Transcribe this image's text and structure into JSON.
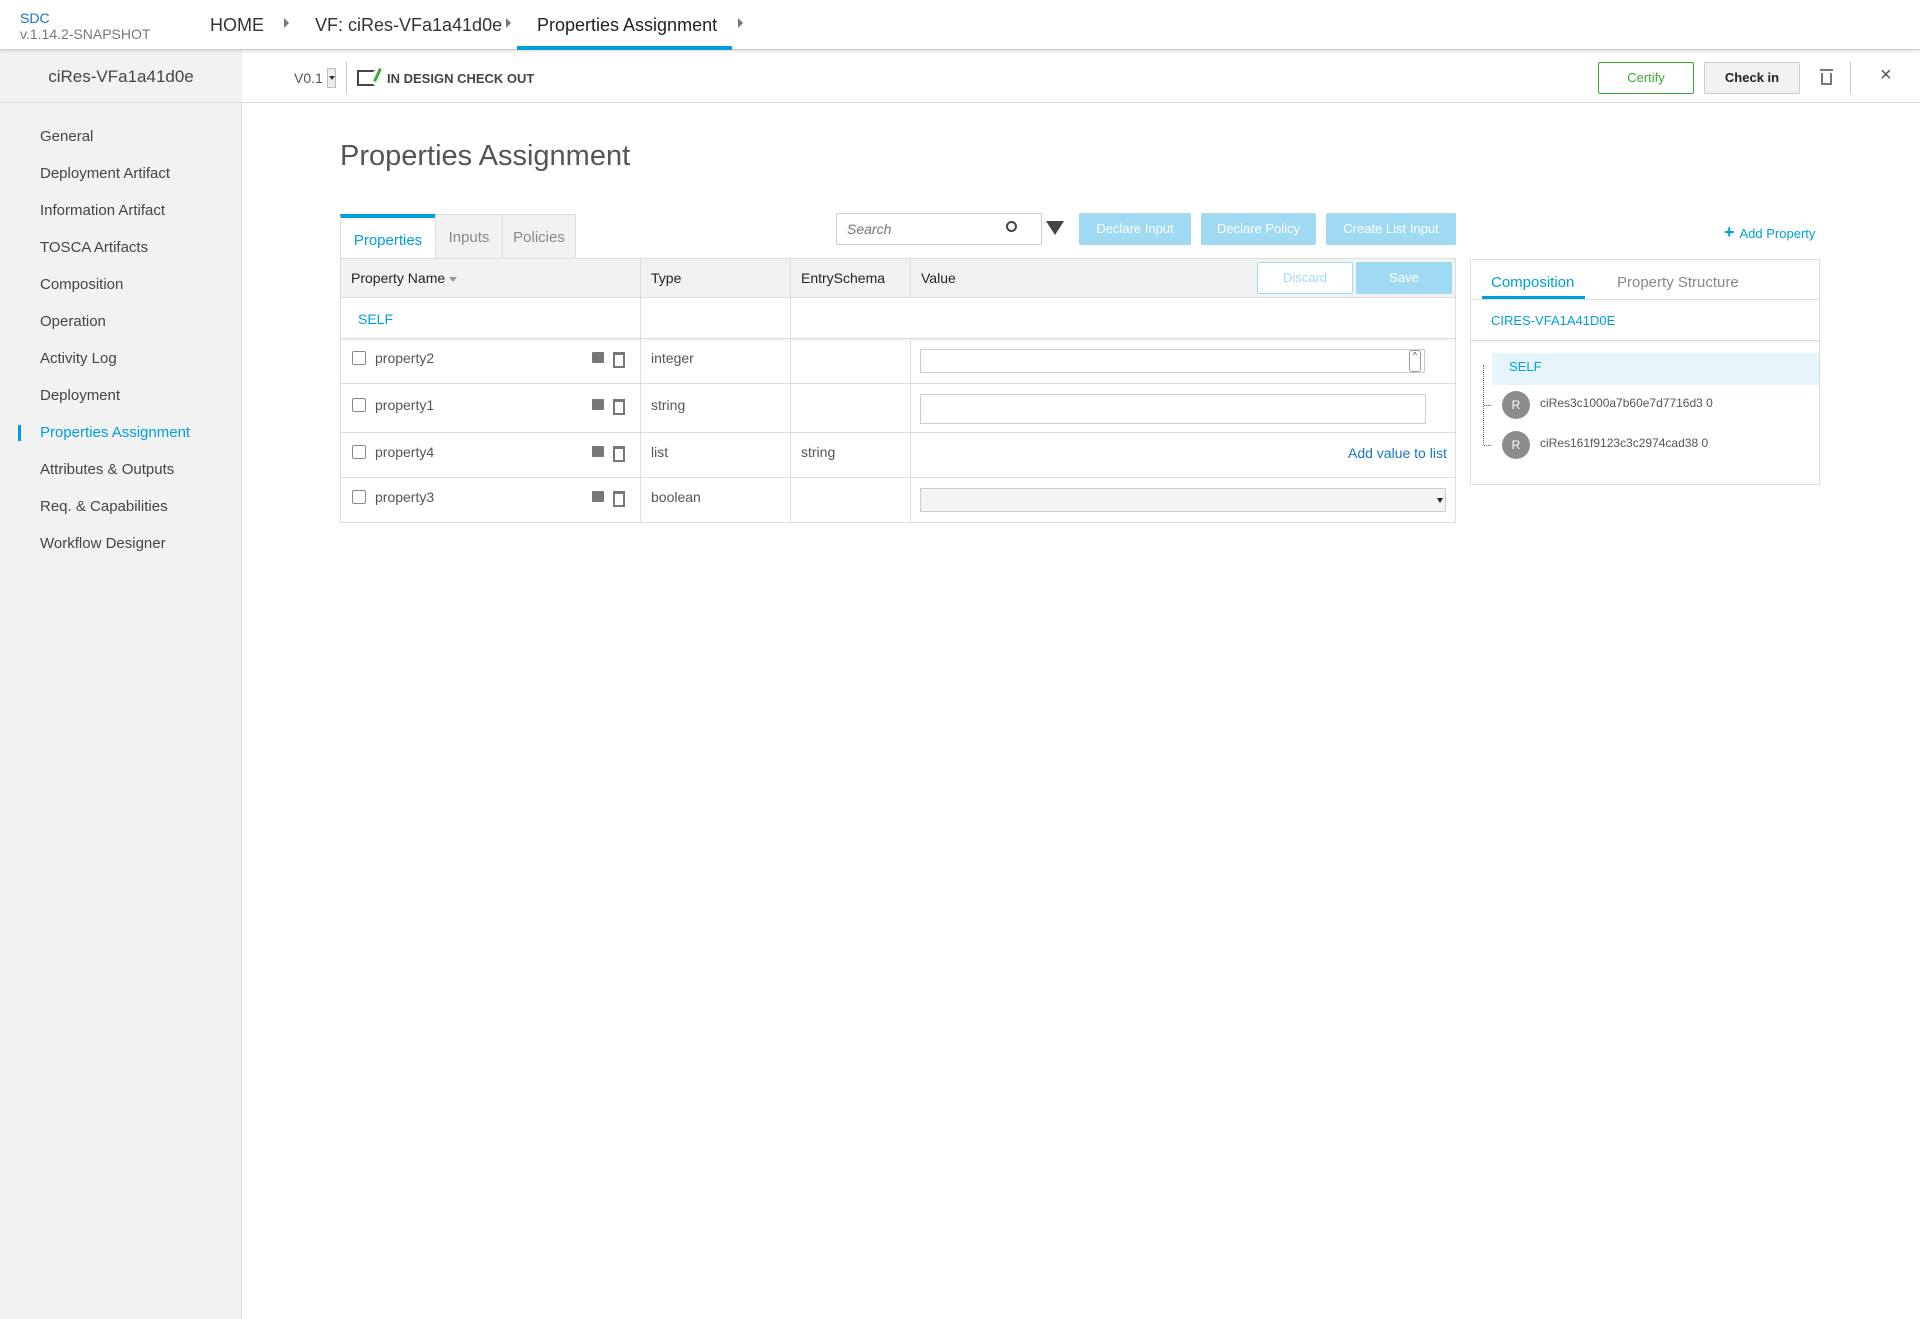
{
  "header": {
    "brand": "SDC",
    "version": "v.1.14.2-SNAPSHOT",
    "breadcrumbs": [
      "HOME",
      "VF: ciRes-VFa1a41d0e",
      "Properties Assignment"
    ]
  },
  "subheader": {
    "resource_name": "ciRes-VFa1a41d0e",
    "version": "V0.1",
    "status": "IN DESIGN CHECK OUT",
    "certify": "Certify",
    "checkin": "Check in"
  },
  "sidebar": {
    "items": [
      "General",
      "Deployment Artifact",
      "Information Artifact",
      "TOSCA Artifacts",
      "Composition",
      "Operation",
      "Activity Log",
      "Deployment",
      "Properties Assignment",
      "Attributes & Outputs",
      "Req. & Capabilities",
      "Workflow Designer"
    ],
    "active": "Properties Assignment"
  },
  "main": {
    "title": "Properties Assignment",
    "tabs": [
      "Properties",
      "Inputs",
      "Policies"
    ],
    "search_placeholder": "Search",
    "declare_input": "Declare Input",
    "declare_policy": "Declare Policy",
    "create_list_input": "Create List Input",
    "add_property": "Add Property",
    "table": {
      "columns": [
        "Property Name",
        "Type",
        "EntrySchema",
        "Value"
      ],
      "discard": "Discard",
      "save": "Save",
      "group": "SELF",
      "rows": [
        {
          "name": "property2",
          "type": "integer",
          "schema": "",
          "value_kind": "number"
        },
        {
          "name": "property1",
          "type": "string",
          "schema": "",
          "value_kind": "text"
        },
        {
          "name": "property4",
          "type": "list",
          "schema": "string",
          "value_kind": "list",
          "action": "Add value to list"
        },
        {
          "name": "property3",
          "type": "boolean",
          "schema": "",
          "value_kind": "select"
        }
      ]
    }
  },
  "right_panel": {
    "tabs": [
      "Composition",
      "Property Structure"
    ],
    "resource": "CIRES-VFA1A41D0E",
    "tree": [
      {
        "label": "SELF"
      },
      {
        "badge": "R",
        "label": "ciRes3c1000a7b60e7d7716d3 0"
      },
      {
        "badge": "R",
        "label": "ciRes161f9123c3c2974cad38 0"
      }
    ]
  },
  "colors": {
    "accent": "#009fdb",
    "certify": "#3daa35",
    "button_disabled": "#9fdaf2"
  }
}
